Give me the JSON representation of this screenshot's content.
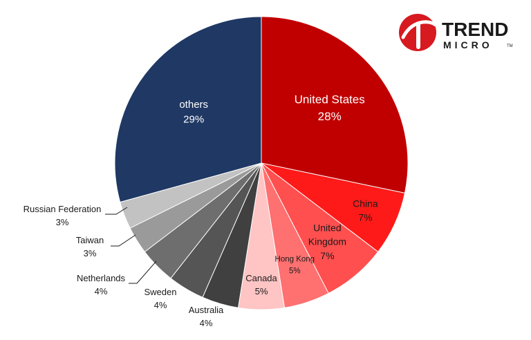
{
  "chart_data": {
    "type": "pie",
    "title": "",
    "start": "top, clockwise",
    "slices": [
      {
        "label": "United States",
        "value": 28,
        "pct_label": "28%",
        "color": "#c00000",
        "text_color": "#ffffff"
      },
      {
        "label": "China",
        "value": 7,
        "pct_label": "7%",
        "color": "#ff1a1a",
        "text_color": "#1a1a1a"
      },
      {
        "label": "United Kingdom",
        "value": 7,
        "pct_label": "7%",
        "color": "#ff4f4f",
        "text_color": "#1a1a1a"
      },
      {
        "label": "Hong Kong",
        "value": 5,
        "pct_label": "5%",
        "color": "#ff7070",
        "text_color": "#1a1a1a"
      },
      {
        "label": "Canada",
        "value": 5,
        "pct_label": "5%",
        "color": "#ffc4c4",
        "text_color": "#1a1a1a"
      },
      {
        "label": "Australia",
        "value": 4,
        "pct_label": "4%",
        "color": "#404040",
        "text_color": "#1a1a1a"
      },
      {
        "label": "Sweden",
        "value": 4,
        "pct_label": "4%",
        "color": "#555555",
        "text_color": "#1a1a1a"
      },
      {
        "label": "Netherlands",
        "value": 4,
        "pct_label": "4%",
        "color": "#6e6e6e",
        "text_color": "#1a1a1a"
      },
      {
        "label": "Taiwan",
        "value": 3,
        "pct_label": "3%",
        "color": "#9a9a9a",
        "text_color": "#1a1a1a"
      },
      {
        "label": "Russian Federation",
        "value": 3,
        "pct_label": "3%",
        "color": "#c2c2c2",
        "text_color": "#1a1a1a"
      },
      {
        "label": "others",
        "value": 29,
        "pct_label": "29%",
        "color": "#1f3864",
        "text_color": "#ffffff"
      }
    ]
  },
  "logo": {
    "line1": "TREND",
    "line2": "MICRO",
    "tm": "TM",
    "color": "#d71920"
  }
}
